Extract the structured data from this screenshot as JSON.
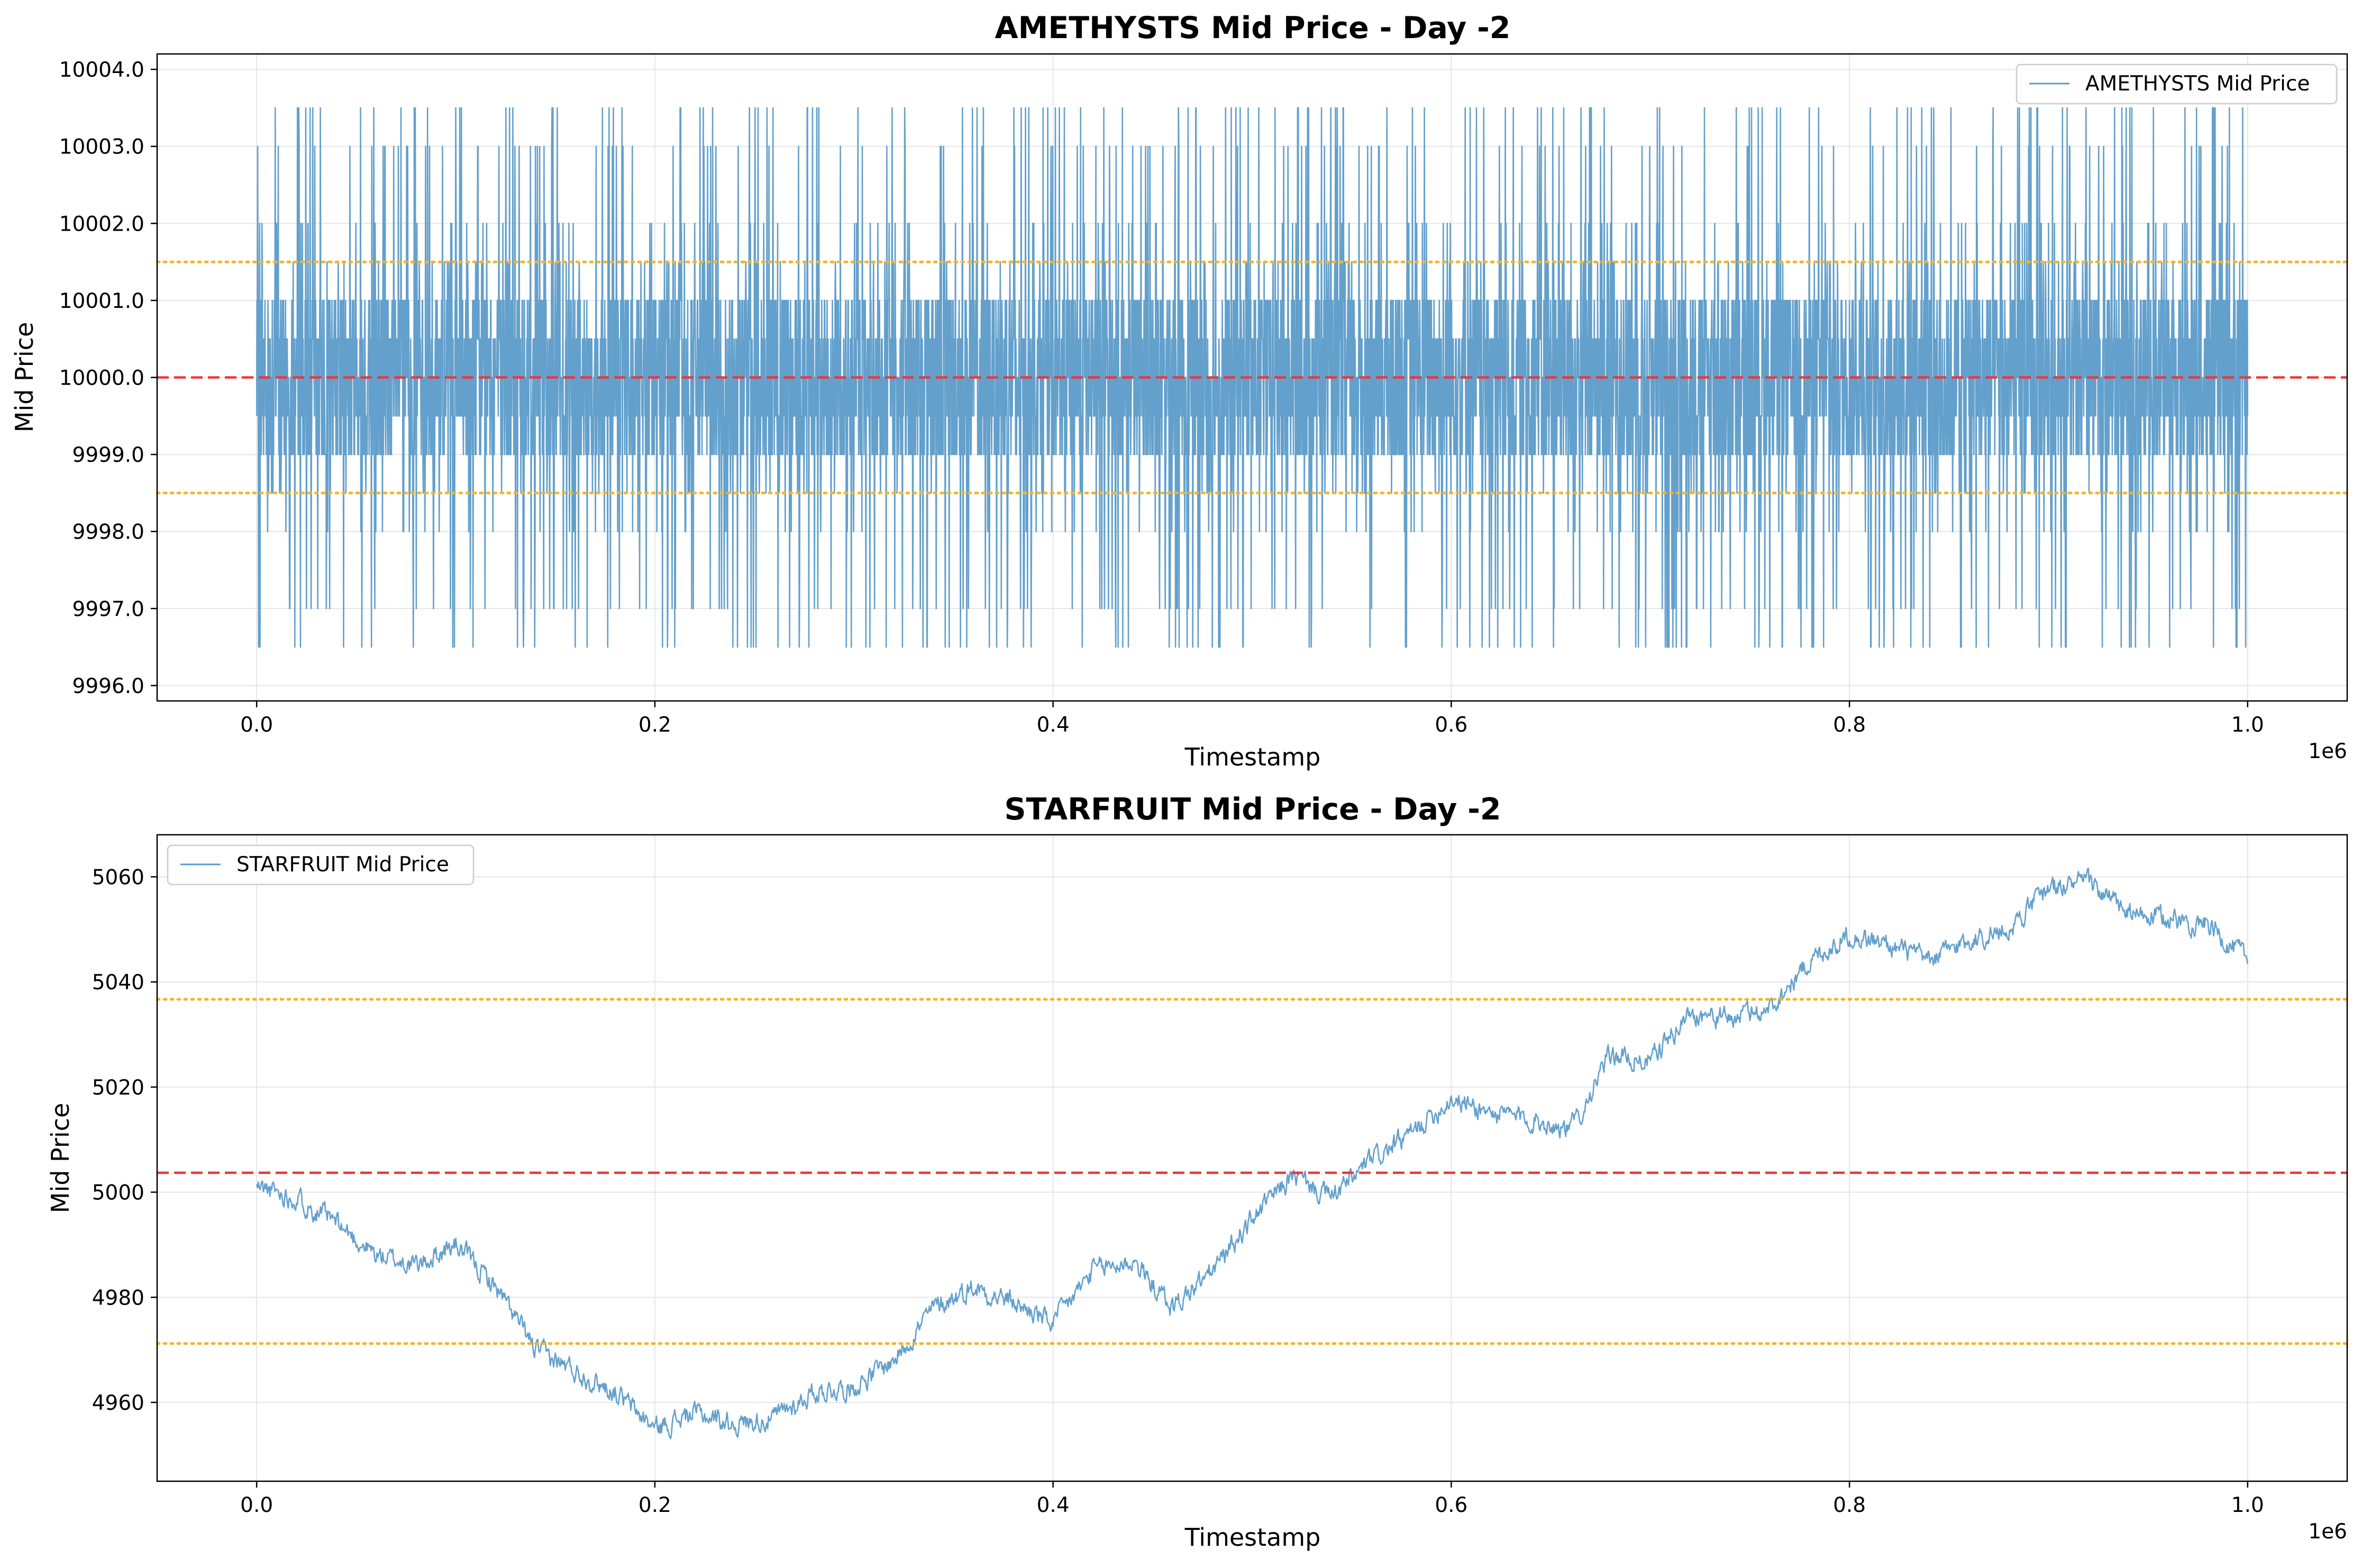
{
  "chart_data": [
    {
      "type": "line",
      "title": "AMETHYSTS Mid Price - Day -2",
      "xlabel": "Timestamp",
      "ylabel": "Mid Price",
      "x_offset_label": "1e6",
      "xlim": [
        -0.05,
        1.05
      ],
      "ylim": [
        9995.8,
        10004.2
      ],
      "x_ticks": [
        0.0,
        0.2,
        0.4,
        0.6,
        0.8,
        1.0
      ],
      "x_tick_labels": [
        "0.0",
        "0.2",
        "0.4",
        "0.6",
        "0.8",
        "1.0"
      ],
      "y_ticks": [
        9996,
        9997,
        9998,
        9999,
        10000,
        10001,
        10002,
        10003,
        10004
      ],
      "y_tick_labels": [
        "9996.0",
        "9997.0",
        "9998.0",
        "9999.0",
        "10000.0",
        "10001.0",
        "10002.0",
        "10003.0",
        "10004.0"
      ],
      "grid": true,
      "legend_position": "upper right",
      "reference_lines": [
        {
          "y": 10000.0,
          "style": "dashed",
          "color": "#e8383d"
        },
        {
          "y": 10001.5,
          "style": "dotted",
          "color": "#f2b627"
        },
        {
          "y": 9998.5,
          "style": "dotted",
          "color": "#f2b627"
        }
      ],
      "series": [
        {
          "name": "AMETHYSTS Mid Price",
          "color": "#5b9bc9",
          "pattern": "oscillating",
          "x_range": [
            0.0,
            1.0
          ],
          "levels": [
            9996.5,
            9997.0,
            9998.0,
            9998.5,
            9999.0,
            9999.5,
            10000.0,
            10000.5,
            10001.0,
            10001.5,
            10002.0,
            10003.0,
            10003.5
          ]
        }
      ]
    },
    {
      "type": "line",
      "title": "STARFRUIT Mid Price - Day -2",
      "xlabel": "Timestamp",
      "ylabel": "Mid Price",
      "x_offset_label": "1e6",
      "xlim": [
        -0.05,
        1.05
      ],
      "ylim": [
        4945,
        5068
      ],
      "x_ticks": [
        0.0,
        0.2,
        0.4,
        0.6,
        0.8,
        1.0
      ],
      "x_tick_labels": [
        "0.0",
        "0.2",
        "0.4",
        "0.6",
        "0.8",
        "1.0"
      ],
      "y_ticks": [
        4960,
        4980,
        5000,
        5020,
        5040,
        5060
      ],
      "y_tick_labels": [
        "4960",
        "4980",
        "5000",
        "5020",
        "5040",
        "5060"
      ],
      "grid": true,
      "legend_position": "upper left",
      "reference_lines": [
        {
          "y": 5003.7,
          "style": "dashed",
          "color": "#e8383d"
        },
        {
          "y": 5036.7,
          "style": "dotted",
          "color": "#f2b627"
        },
        {
          "y": 4971.2,
          "style": "dotted",
          "color": "#f2b627"
        }
      ],
      "series": [
        {
          "name": "STARFRUIT Mid Price",
          "color": "#5b9bc9",
          "pattern": "trend",
          "x": [
            0.0,
            0.02,
            0.04,
            0.06,
            0.08,
            0.1,
            0.12,
            0.14,
            0.16,
            0.18,
            0.2,
            0.22,
            0.24,
            0.26,
            0.28,
            0.3,
            0.32,
            0.34,
            0.36,
            0.38,
            0.4,
            0.42,
            0.44,
            0.46,
            0.48,
            0.5,
            0.52,
            0.54,
            0.56,
            0.58,
            0.6,
            0.62,
            0.64,
            0.66,
            0.68,
            0.7,
            0.72,
            0.74,
            0.76,
            0.78,
            0.8,
            0.82,
            0.84,
            0.86,
            0.88,
            0.9,
            0.92,
            0.94,
            0.96,
            0.98,
            1.0
          ],
          "values": [
            5001,
            4999,
            4994,
            4988,
            4986,
            4990,
            4982,
            4970,
            4966,
            4962,
            4955,
            4958,
            4956,
            4957,
            4962,
            4963,
            4968,
            4978,
            4982,
            4979,
            4975,
            4985,
            4987,
            4978,
            4985,
            4995,
            5003,
            4999,
            5006,
            5011,
            5018,
            5015,
            5014,
            5012,
            5026,
            5025,
            5034,
            5033,
            5035,
            5044,
            5049,
            5047,
            5044,
            5048,
            5050,
            5058,
            5059,
            5053,
            5052,
            5051,
            5044
          ]
        }
      ]
    }
  ]
}
